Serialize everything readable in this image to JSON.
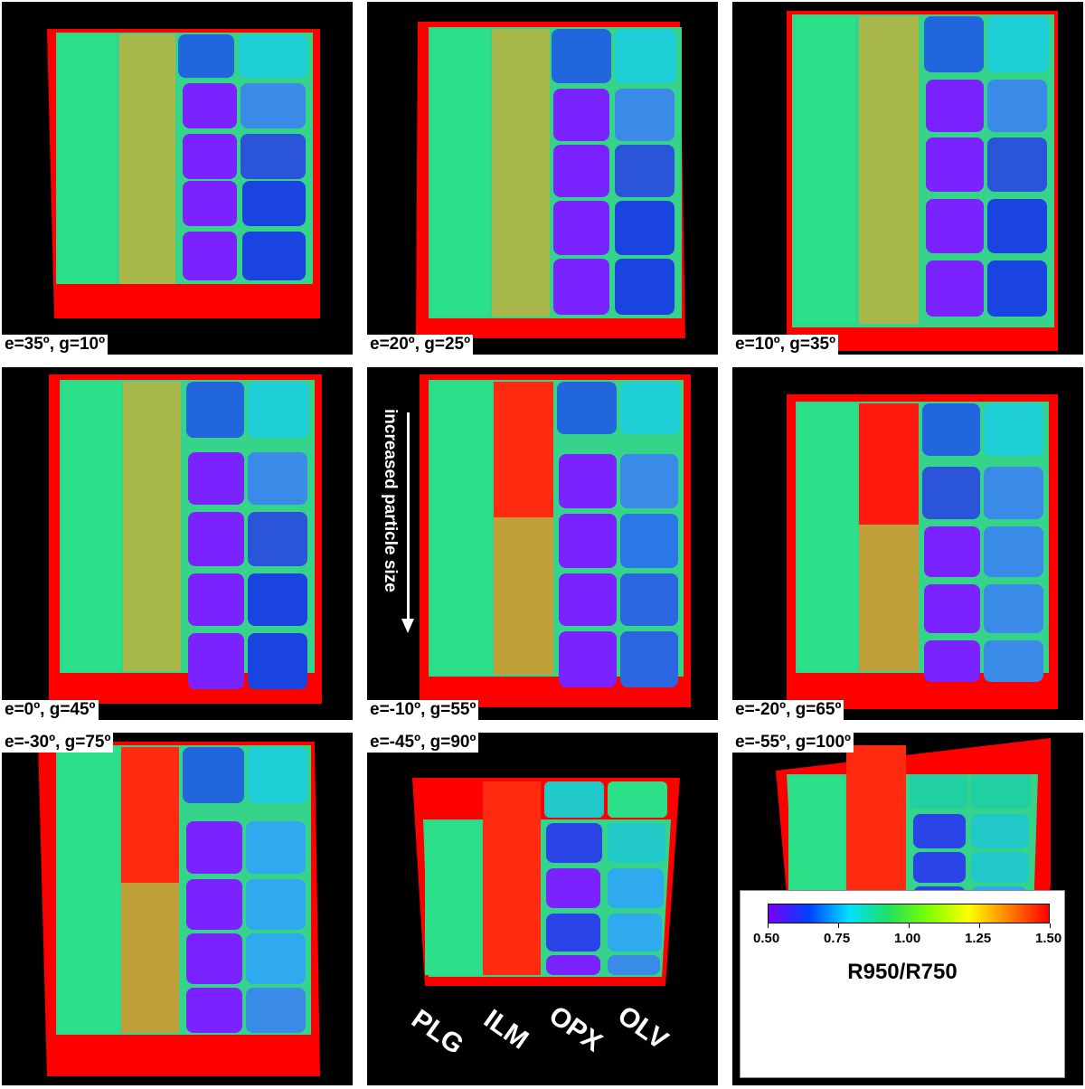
{
  "panels": [
    {
      "label": "e=35º, g=10º",
      "label_pos": "bottom"
    },
    {
      "label": "e=20º, g=25º",
      "label_pos": "bottom"
    },
    {
      "label": "e=10º, g=35º",
      "label_pos": "bottom"
    },
    {
      "label": "e=0º, g=45º",
      "label_pos": "bottom"
    },
    {
      "label": "e=-10º, g=55º",
      "label_pos": "bottom"
    },
    {
      "label": "e=-20º, g=65º",
      "label_pos": "bottom"
    },
    {
      "label": "e=-30º, g=75º",
      "label_pos": "top"
    },
    {
      "label": "e=-45º, g=90º",
      "label_pos": "top"
    },
    {
      "label": "e=-55º, g=100º",
      "label_pos": "top"
    }
  ],
  "annotation": {
    "text": "increased particle size"
  },
  "materials": [
    "PLG",
    "ILM",
    "OPX",
    "OLV"
  ],
  "legend": {
    "title": "R950/R750",
    "ticks": [
      "0.50",
      "0.75",
      "1.00",
      "1.25",
      "1.50"
    ],
    "colors": [
      "#7a00ff",
      "#0040ff",
      "#00e0ff",
      "#20e060",
      "#80ff00",
      "#ffff00",
      "#ff8000",
      "#ff0000"
    ]
  }
}
